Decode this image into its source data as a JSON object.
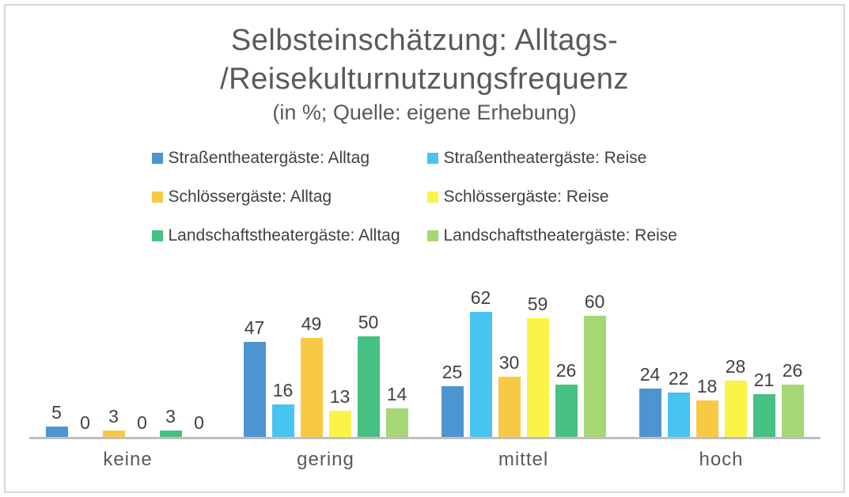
{
  "title": {
    "line1": "Selbsteinschätzung: Alltags-",
    "line2": "/Reisekulturnutzungsfrequenz",
    "subtitle": "(in %; Quelle: eigene Erhebung)"
  },
  "colors": {
    "title_text": "#595959",
    "label_text": "#404040",
    "axis_line": "#bfbfbf",
    "frame_border": "#d8d8d8"
  },
  "chart_data": {
    "type": "bar",
    "title": "Selbsteinschätzung: Alltags-/Reisekulturnutzungsfrequenz",
    "subtitle": "(in %; Quelle: eigene Erhebung)",
    "categories": [
      "keine",
      "gering",
      "mittel",
      "hoch"
    ],
    "series": [
      {
        "name": "Straßentheatergäste: Alltag",
        "color": "#4d95d0",
        "values": [
          5,
          47,
          25,
          24
        ]
      },
      {
        "name": "Straßentheatergäste: Reise",
        "color": "#47c4ef",
        "values": [
          0,
          16,
          62,
          22
        ]
      },
      {
        "name": "Schlössergäste: Alltag",
        "color": "#f8c944",
        "values": [
          3,
          49,
          30,
          18
        ]
      },
      {
        "name": "Schlössergäste: Reise",
        "color": "#faf448",
        "values": [
          0,
          13,
          59,
          28
        ]
      },
      {
        "name": "Landschaftstheatergäste: Alltag",
        "color": "#47c083",
        "values": [
          3,
          50,
          26,
          21
        ]
      },
      {
        "name": "Landschaftstheatergäste: Reise",
        "color": "#a6d775",
        "values": [
          0,
          14,
          60,
          26
        ]
      }
    ],
    "ylim": [
      0,
      65
    ],
    "grid": false,
    "legend_position": "top",
    "data_labels": true,
    "xlabel": "",
    "ylabel": ""
  }
}
